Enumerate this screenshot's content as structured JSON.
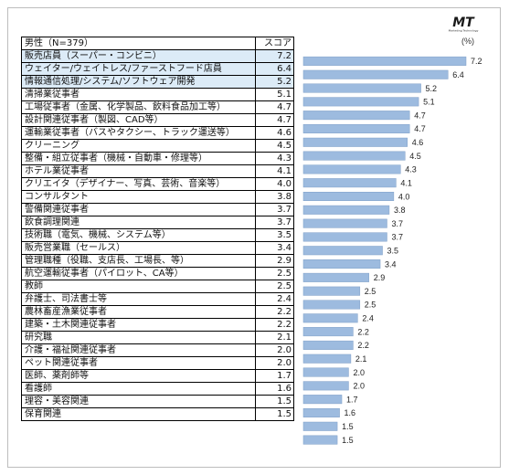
{
  "unit_label": "(%)",
  "logo": {
    "text": "MT",
    "subtext": "Marketing Technology",
    "color": "#1a1a1a"
  },
  "table": {
    "header": {
      "label": "男性（N=379）",
      "score": "スコア"
    },
    "highlight_color": "#dcebf7",
    "highlight_rows": [
      0,
      1,
      2
    ]
  },
  "chart_data": {
    "type": "bar",
    "orientation": "horizontal",
    "bar_color": "#9dbbdf",
    "bar_edge_color": "#7f9fc7",
    "xlim": [
      0,
      7.2
    ],
    "categories": [
      "販売店員（スーパー・コンビニ）",
      "ウェイター/ウェイトレス/ファーストフード店員",
      "情報通信処理/システム/ソフトウェア開発",
      "清掃業従事者",
      "工場従事者（金属、化学製品、飲料食品加工等）",
      "設計関連従事者（製図、CAD等）",
      "運輸業従事者（バスやタクシー、トラック運送等）",
      "クリーニング",
      "整備・組立従事者（機械・自動車・修理等）",
      "ホテル業従事者",
      "クリエイタ（デザイナー、写真、芸術、音楽等）",
      "コンサルタント",
      "警備関連従事者",
      "飲食調理関連",
      "技術職（電気、機械、システム等）",
      "販売営業職（セールス）",
      "管理職種（役職、支店長、工場長、等）",
      "航空運輸従事者（パイロット、CA等）",
      "教師",
      "弁護士、司法書士等",
      "農林畜産漁業従事者",
      "建築・土木関連従事者",
      "研究職",
      "介護・福祉関連従事者",
      "ペット関連従事者",
      "医師、薬剤師等",
      "看護師",
      "理容・美容関連",
      "保育関連"
    ],
    "values": [
      7.2,
      6.4,
      5.2,
      5.1,
      4.7,
      4.7,
      4.6,
      4.5,
      4.3,
      4.1,
      4.0,
      3.8,
      3.7,
      3.7,
      3.5,
      3.4,
      2.9,
      2.5,
      2.5,
      2.4,
      2.2,
      2.2,
      2.1,
      2.0,
      2.0,
      1.7,
      1.6,
      1.5,
      1.5
    ],
    "value_labels": [
      "7.2",
      "6.4",
      "5.2",
      "5.1",
      "4.7",
      "4.7",
      "4.6",
      "4.5",
      "4.3",
      "4.1",
      "4.0",
      "3.8",
      "3.7",
      "3.7",
      "3.5",
      "3.4",
      "2.9",
      "2.5",
      "2.5",
      "2.4",
      "2.2",
      "2.2",
      "2.1",
      "2.0",
      "2.0",
      "1.7",
      "1.6",
      "1.5",
      "1.5"
    ]
  }
}
